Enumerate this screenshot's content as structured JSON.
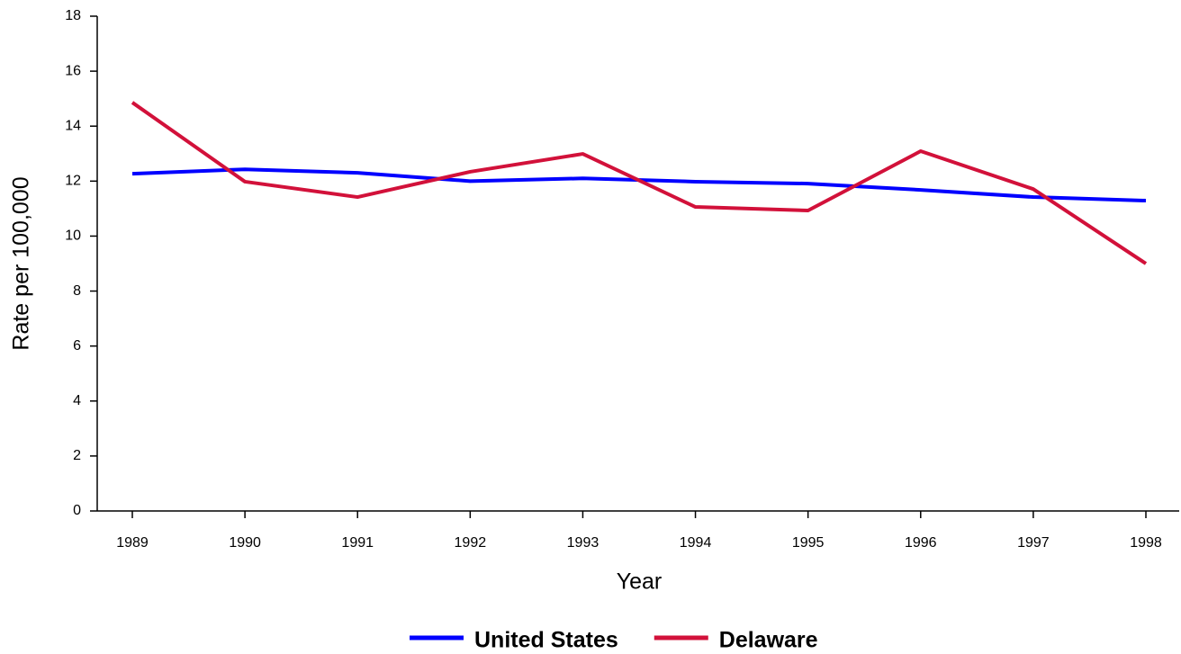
{
  "chart_data": {
    "type": "line",
    "x_label": "Year",
    "y_label": "Rate per 100,000",
    "categories": [
      "1989",
      "1990",
      "1991",
      "1992",
      "1993",
      "1994",
      "1995",
      "1996",
      "1997",
      "1998"
    ],
    "series": [
      {
        "name": "United States",
        "color": "#0000ff",
        "values": [
          12.27,
          12.43,
          12.3,
          12.0,
          12.1,
          11.98,
          11.91,
          11.68,
          11.42,
          11.29
        ]
      },
      {
        "name": "Delaware",
        "color": "#d2113a",
        "values": [
          14.86,
          11.98,
          11.42,
          12.34,
          12.99,
          11.06,
          10.93,
          13.09,
          11.71,
          9.0
        ]
      }
    ],
    "ylim": [
      0,
      18
    ],
    "yticks": [
      0,
      2,
      4,
      6,
      8,
      10,
      12,
      14,
      16,
      18
    ],
    "legend": "bottom"
  }
}
